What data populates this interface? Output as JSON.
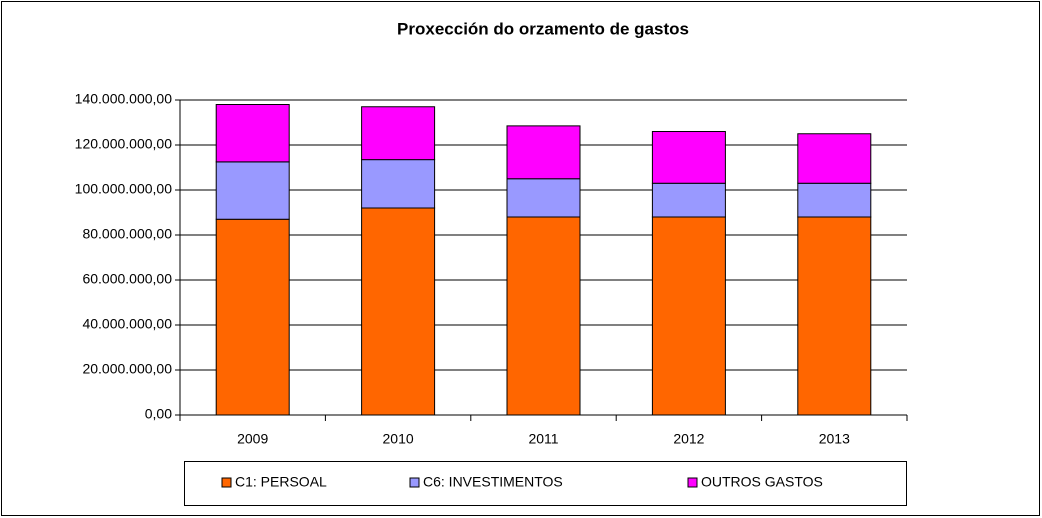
{
  "chart_data": {
    "type": "stacked_bar",
    "title": "Proxección do orzamento de gastos",
    "categories": [
      "2009",
      "2010",
      "2011",
      "2012",
      "2013"
    ],
    "series": [
      {
        "name": "C1: PERSOAL",
        "color": "#ff6600",
        "values": [
          87000000,
          92000000,
          88000000,
          88000000,
          88000000
        ]
      },
      {
        "name": "C6: INVESTIMENTOS",
        "color": "#9999ff",
        "values": [
          25500000,
          21500000,
          17000000,
          15000000,
          15000000
        ]
      },
      {
        "name": "OUTROS GASTOS",
        "color": "#ff00ff",
        "values": [
          25500000,
          23500000,
          23500000,
          23000000,
          22000000
        ]
      }
    ],
    "ylim": [
      0,
      140000000
    ],
    "yticks": [
      {
        "value": 0,
        "label": "0,00"
      },
      {
        "value": 20000000,
        "label": "20.000.000,00"
      },
      {
        "value": 40000000,
        "label": "40.000.000,00"
      },
      {
        "value": 60000000,
        "label": "60.000.000,00"
      },
      {
        "value": 80000000,
        "label": "80.000.000,00"
      },
      {
        "value": 100000000,
        "label": "100.000.000,00"
      },
      {
        "value": 120000000,
        "label": "120.000.000,00"
      },
      {
        "value": 140000000,
        "label": "140.000.000,00"
      }
    ],
    "grid": true,
    "legend": "bottom"
  }
}
